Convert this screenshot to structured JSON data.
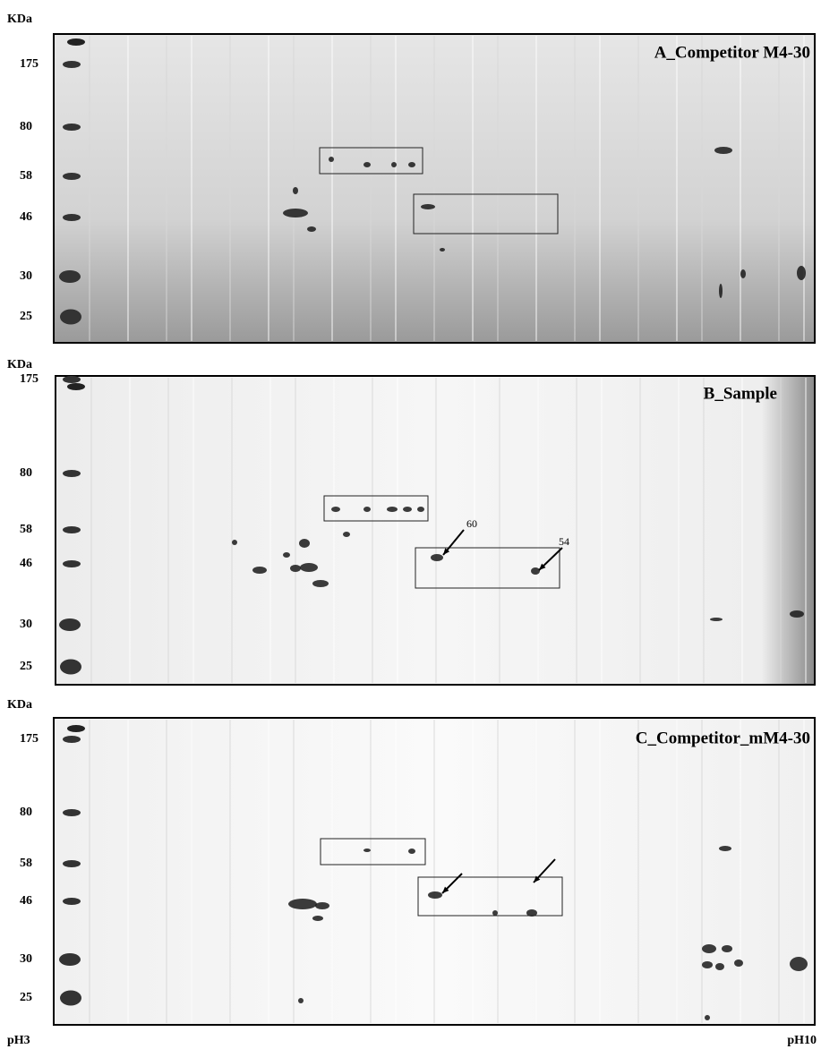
{
  "panels": [
    {
      "unit_label": "KDa",
      "title": "A_Competitor M4-30",
      "markers": [
        175,
        80,
        58,
        46,
        30,
        25
      ]
    },
    {
      "unit_label": "KDa",
      "title": "B_Sample",
      "markers": [
        175,
        80,
        58,
        46,
        30,
        25
      ],
      "spot_labels": [
        "60",
        "54"
      ]
    },
    {
      "unit_label": "KDa",
      "title": "C_Competitor_mM4-30",
      "markers": [
        175,
        80,
        58,
        46,
        30,
        25
      ]
    }
  ],
  "footer": {
    "left": "pH3",
    "right": "pH10"
  }
}
